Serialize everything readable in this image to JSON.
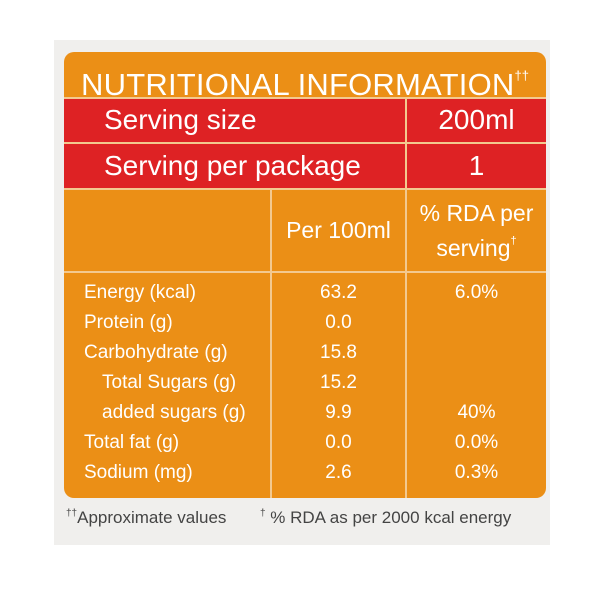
{
  "label": {
    "title": "NUTRITIONAL INFORMATION",
    "title_mark": "††",
    "serving_size": {
      "label": "Serving size",
      "value": "200ml"
    },
    "serving_per_package": {
      "label": "Serving per package",
      "value": "1"
    },
    "columns": {
      "per_100ml": "Per 100ml",
      "rda_line1": "% RDA per",
      "rda_line2": "serving",
      "rda_mark": "†"
    },
    "rows": [
      {
        "name": "Energy (kcal)",
        "per_100ml": "63.2",
        "rda": "6.0%"
      },
      {
        "name": "Protein (g)",
        "per_100ml": "0.0",
        "rda": ""
      },
      {
        "name": "Carbohydrate (g)",
        "per_100ml": "15.8",
        "rda": ""
      },
      {
        "name": "Total Sugars (g)",
        "per_100ml": "15.2",
        "rda": ""
      },
      {
        "name": "added sugars (g)",
        "per_100ml": "9.9",
        "rda": "40%"
      },
      {
        "name": "Total fat (g)",
        "per_100ml": "0.0",
        "rda": "0.0%"
      },
      {
        "name": "Sodium (mg)",
        "per_100ml": "2.6",
        "rda": "0.3%"
      }
    ],
    "footnotes": {
      "left_mark": "††",
      "left": "Approximate values",
      "right_mark": "†",
      "right": " % RDA as per 2000 kcal energy"
    },
    "colors": {
      "panel": "#eb8f16",
      "header_rows": "#de2224",
      "text": "#ffffff",
      "footnote_text": "#444444"
    }
  }
}
